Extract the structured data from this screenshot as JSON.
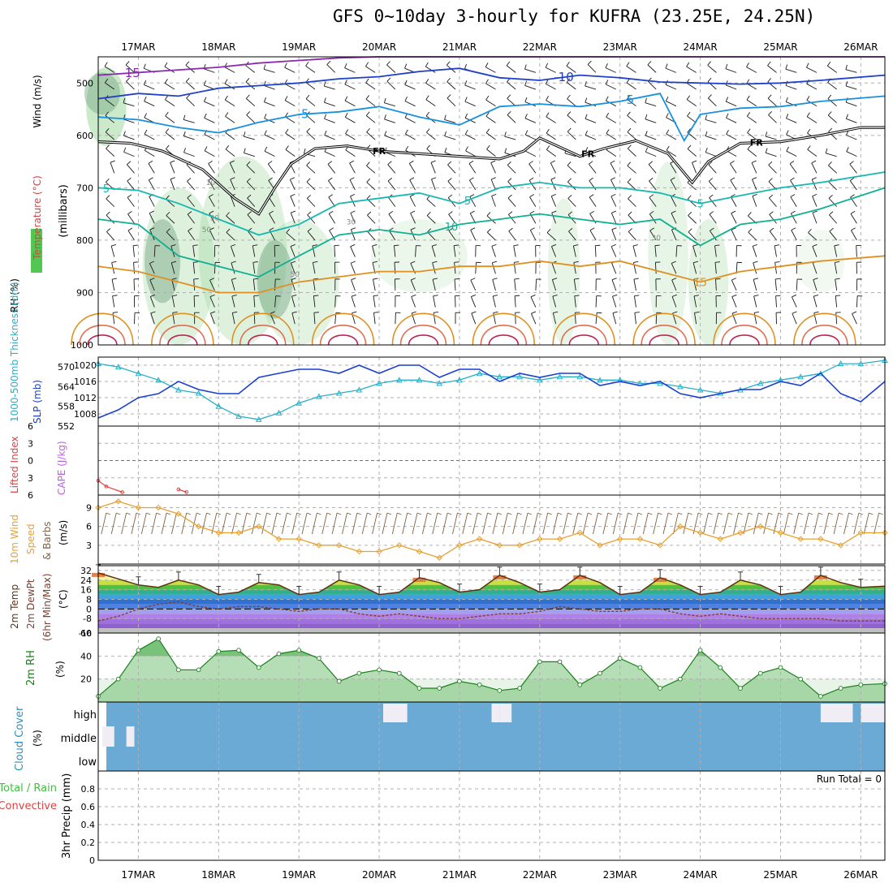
{
  "title": "GFS 0~10day 3-hourly for KUFRA (23.25E, 24.25N)",
  "x_axis": {
    "date_labels": [
      "17MAR",
      "18MAR",
      "19MAR",
      "20MAR",
      "21MAR",
      "22MAR",
      "23MAR",
      "24MAR",
      "25MAR",
      "26MAR"
    ]
  },
  "colors": {
    "temperature_label": "#e04040",
    "wind_label": "#000000",
    "rh_label_bg": "#40c040",
    "slp_line": "#1a3fd0",
    "thickness_line": "#28b0c8",
    "lifted_index": "#e04040",
    "cape": "#c060e0",
    "wind10m_speed": "#e8a030",
    "wind10m_barbs": "#806040",
    "temp2m_line": "#603010",
    "dewpt_line": "#804030",
    "rh2m_fill": "#2ea02e",
    "rh2m_line": "#1a801a",
    "cloud_fill": "#6aaad4",
    "cloud_clear": "#f0eef4",
    "precip_total": "#40c040",
    "precip_convective": "#e04040"
  },
  "panel_labels": {
    "upper": {
      "temperature": "Temperature (°C)",
      "wind": "Wind (m/s)",
      "rh": "RH (%)",
      "pressure_unit": "(millibars)"
    },
    "slp_thickness": {
      "thickness": "1000-500mb Thickness (dm)",
      "slp": "SLP (mb)"
    },
    "stability": {
      "lifted_index": "Lifted Index",
      "cape": "CAPE (J/kg)"
    },
    "wind10m": {
      "line1": "10m Wind",
      "line2": "Speed",
      "line3": "& Barbs",
      "unit": "(m/s)"
    },
    "temp2m": {
      "line1": "2m Temp",
      "line2": "2m DewPt",
      "line3": "(6hr Min/Max)",
      "unit": "(°C)"
    },
    "rh2m": {
      "label": "2m RH",
      "unit": "(%)"
    },
    "cloud": {
      "label": "Cloud Cover",
      "unit": "(%)"
    },
    "precip": {
      "total": "Total / Rain",
      "convective": "Convective",
      "label": "3hr Precip (mm)",
      "run_total": "Run Total = 0"
    }
  },
  "chart_data": [
    {
      "type": "line",
      "panel": "upper-air cross-section",
      "y_ticks": [
        "500",
        "600",
        "700",
        "800",
        "900",
        "1000"
      ],
      "y_range_mb": [
        450,
        1000
      ],
      "days": [
        16.5,
        26.3
      ],
      "contour_labels": [
        "-15",
        "-10",
        "-5",
        "FR",
        "5",
        "10",
        "15"
      ],
      "rh_labels": [
        "10",
        "30",
        "50",
        "70"
      ],
      "isotherms": [
        {
          "label": "-15",
          "color": "#8a2ab0",
          "days": [
            16.5,
            17.5,
            18.0,
            18.5,
            19.0,
            19.5,
            20.0,
            21.0,
            22.0,
            23.0,
            24.0,
            25.0,
            26.3
          ],
          "mb": [
            485,
            475,
            470,
            462,
            457,
            452,
            450,
            450,
            450,
            450,
            450,
            450,
            450
          ]
        },
        {
          "label": "-10",
          "color": "#2040c8",
          "days": [
            16.5,
            17.0,
            17.5,
            18.0,
            18.5,
            19.0,
            19.5,
            20.0,
            20.5,
            21.0,
            21.5,
            22.0,
            22.5,
            23.0,
            23.5,
            24.0,
            24.5,
            25.0,
            25.5,
            26.3
          ],
          "mb": [
            530,
            520,
            525,
            510,
            505,
            500,
            492,
            488,
            478,
            472,
            490,
            495,
            485,
            490,
            498,
            500,
            502,
            500,
            495,
            485
          ]
        },
        {
          "label": "-5",
          "color": "#1890e0",
          "days": [
            16.5,
            17.0,
            17.5,
            18.0,
            18.5,
            19.0,
            19.5,
            20.0,
            20.5,
            21.0,
            21.5,
            22.0,
            22.5,
            23.0,
            23.5,
            23.8,
            24.0,
            24.5,
            25.0,
            25.5,
            26.3
          ],
          "mb": [
            565,
            570,
            585,
            595,
            575,
            560,
            555,
            545,
            565,
            580,
            545,
            540,
            545,
            535,
            520,
            610,
            560,
            548,
            545,
            535,
            525
          ]
        },
        {
          "label": "FR",
          "color": "#000000",
          "days": [
            16.5,
            16.9,
            17.3,
            17.8,
            18.2,
            18.5,
            18.7,
            18.9,
            19.2,
            19.6,
            20.0,
            20.5,
            21.0,
            21.5,
            21.8,
            22.0,
            22.5,
            22.8,
            23.2,
            23.6,
            23.9,
            24.1,
            24.5,
            25.0,
            25.5,
            26.0,
            26.3
          ],
          "mb": [
            612,
            615,
            630,
            665,
            720,
            750,
            700,
            655,
            625,
            620,
            630,
            635,
            640,
            645,
            630,
            605,
            640,
            625,
            610,
            635,
            690,
            650,
            615,
            612,
            600,
            585,
            585
          ]
        },
        {
          "label": "5",
          "color": "#18b8b0",
          "days": [
            16.5,
            17.0,
            17.5,
            18.0,
            18.5,
            19.0,
            19.5,
            20.0,
            20.5,
            21.0,
            21.5,
            22.0,
            22.5,
            23.0,
            23.5,
            24.0,
            24.5,
            25.0,
            25.5,
            26.3
          ],
          "mb": [
            700,
            705,
            730,
            760,
            790,
            770,
            730,
            720,
            710,
            730,
            700,
            690,
            700,
            700,
            710,
            730,
            715,
            700,
            690,
            670
          ]
        },
        {
          "label": "10",
          "color": "#10b090",
          "days": [
            16.5,
            17.0,
            17.5,
            18.0,
            18.5,
            19.0,
            19.5,
            20.0,
            20.5,
            21.0,
            21.5,
            22.0,
            22.5,
            23.0,
            23.5,
            24.0,
            24.5,
            25.0,
            25.5,
            26.3
          ],
          "mb": [
            760,
            770,
            830,
            850,
            870,
            830,
            790,
            780,
            790,
            770,
            760,
            750,
            760,
            770,
            760,
            810,
            770,
            760,
            740,
            700
          ]
        },
        {
          "label": "15",
          "color": "#e09020",
          "days": [
            16.5,
            17.0,
            17.5,
            18.0,
            18.5,
            19.0,
            19.5,
            20.0,
            20.5,
            21.0,
            21.5,
            22.0,
            22.5,
            23.0,
            23.5,
            24.0,
            24.5,
            25.0,
            25.5,
            26.3
          ],
          "mb": [
            850,
            860,
            880,
            900,
            900,
            880,
            870,
            860,
            860,
            850,
            850,
            840,
            850,
            840,
            860,
            880,
            860,
            850,
            840,
            830
          ]
        }
      ]
    },
    {
      "type": "line",
      "panel": "SLP and thickness",
      "slp_ticks": [
        "1008",
        "1012",
        "1016",
        "1020"
      ],
      "slp_range": [
        1005,
        1022
      ],
      "thickness_ticks": [
        "552",
        "558",
        "564",
        "570"
      ],
      "thickness_range": [
        552,
        573
      ],
      "days": [
        16.5,
        16.75,
        17.0,
        17.25,
        17.5,
        17.75,
        18.0,
        18.25,
        18.5,
        18.75,
        19.0,
        19.25,
        19.5,
        19.75,
        20.0,
        20.25,
        20.5,
        20.75,
        21.0,
        21.25,
        21.5,
        21.75,
        22.0,
        22.25,
        22.5,
        22.75,
        23.0,
        23.25,
        23.5,
        23.75,
        24.0,
        24.25,
        24.5,
        24.75,
        25.0,
        25.25,
        25.5,
        25.75,
        26.0,
        26.3
      ],
      "series": [
        {
          "name": "SLP (mb)",
          "values": [
            1007,
            1009,
            1012,
            1013,
            1016,
            1014,
            1013,
            1013,
            1017,
            1018,
            1019,
            1019,
            1018,
            1020,
            1018,
            1020,
            1020,
            1017,
            1019,
            1019,
            1016,
            1018,
            1017,
            1018,
            1018,
            1015,
            1016,
            1015,
            1016,
            1013,
            1012,
            1013,
            1014,
            1014,
            1016,
            1015,
            1018,
            1013,
            1011,
            1016
          ]
        },
        {
          "name": "1000-500mb Thickness (dm)",
          "values": [
            571,
            570,
            568,
            566,
            563,
            562,
            558,
            555,
            554,
            556,
            559,
            561,
            562,
            563,
            565,
            566,
            566,
            565,
            566,
            568,
            567,
            567,
            566,
            567,
            567,
            566,
            566,
            565,
            565,
            564,
            563,
            562,
            563,
            565,
            566,
            567,
            568,
            571,
            571,
            572
          ]
        }
      ]
    },
    {
      "type": "line",
      "panel": "Lifted index and CAPE",
      "y_ticks": [
        "-6",
        "-3",
        "0",
        "3",
        "6"
      ],
      "y_range": [
        -6,
        6
      ],
      "series": [
        {
          "name": "Lifted Index",
          "days": [
            16.5,
            16.6,
            16.8
          ],
          "values": [
            3.5,
            4.5,
            5.5
          ]
        },
        {
          "name": "Lifted Index",
          "days": [
            17.5,
            17.6
          ],
          "values": [
            5.0,
            5.5
          ]
        }
      ]
    },
    {
      "type": "line",
      "panel": "10m wind",
      "y_ticks": [
        "3",
        "6",
        "9"
      ],
      "y_range": [
        0,
        11
      ],
      "days": [
        16.5,
        16.75,
        17.0,
        17.25,
        17.5,
        17.75,
        18.0,
        18.25,
        18.5,
        18.75,
        19.0,
        19.25,
        19.5,
        19.75,
        20.0,
        20.25,
        20.5,
        20.75,
        21.0,
        21.25,
        21.5,
        21.75,
        22.0,
        22.25,
        22.5,
        22.75,
        23.0,
        23.25,
        23.5,
        23.75,
        24.0,
        24.25,
        24.5,
        24.75,
        25.0,
        25.25,
        25.5,
        25.75,
        26.0,
        26.3
      ],
      "series": [
        {
          "name": "Speed",
          "values": [
            9,
            10,
            9,
            9,
            8,
            6,
            5,
            5,
            6,
            4,
            4,
            3,
            3,
            2,
            2,
            3,
            2,
            1,
            3,
            4,
            3,
            3,
            4,
            4,
            5,
            3,
            4,
            4,
            3,
            6,
            5,
            4,
            5,
            6,
            5,
            4,
            4,
            3,
            5,
            5
          ]
        }
      ]
    },
    {
      "type": "line",
      "panel": "2m temperature and dewpoint",
      "y_ticks": [
        "32",
        "24",
        "16",
        "8",
        "0",
        "-8",
        "-16"
      ],
      "y_range": [
        -20,
        36
      ],
      "days": [
        16.5,
        16.75,
        17.0,
        17.25,
        17.5,
        17.75,
        18.0,
        18.25,
        18.5,
        18.75,
        19.0,
        19.25,
        19.5,
        19.75,
        20.0,
        20.25,
        20.5,
        20.75,
        21.0,
        21.25,
        21.5,
        21.75,
        22.0,
        22.25,
        22.5,
        22.75,
        23.0,
        23.25,
        23.5,
        23.75,
        24.0,
        24.25,
        24.5,
        24.75,
        25.0,
        25.25,
        25.5,
        25.75,
        26.0,
        26.3
      ],
      "series": [
        {
          "name": "2m Temp",
          "values": [
            30,
            25,
            20,
            18,
            24,
            20,
            12,
            14,
            22,
            20,
            12,
            14,
            24,
            20,
            12,
            14,
            26,
            22,
            14,
            16,
            28,
            22,
            14,
            16,
            28,
            22,
            12,
            14,
            26,
            20,
            12,
            14,
            24,
            20,
            12,
            14,
            28,
            22,
            18,
            19
          ]
        },
        {
          "name": "2m DewPt",
          "values": [
            -10,
            -6,
            0,
            4,
            6,
            2,
            0,
            2,
            2,
            0,
            -2,
            0,
            0,
            -4,
            -6,
            -4,
            -6,
            -8,
            -8,
            -6,
            -4,
            -4,
            -2,
            2,
            0,
            -2,
            -2,
            0,
            0,
            -4,
            -6,
            -4,
            -6,
            -8,
            -8,
            -8,
            -8,
            -10,
            -10,
            -10
          ]
        }
      ]
    },
    {
      "type": "area",
      "panel": "2m RH",
      "y_ticks": [
        "20",
        "40",
        "60"
      ],
      "y_range": [
        0,
        60
      ],
      "days": [
        16.5,
        16.75,
        17.0,
        17.25,
        17.5,
        17.75,
        18.0,
        18.25,
        18.5,
        18.75,
        19.0,
        19.25,
        19.5,
        19.75,
        20.0,
        20.25,
        20.5,
        20.75,
        21.0,
        21.25,
        21.5,
        21.75,
        22.0,
        22.25,
        22.5,
        22.75,
        23.0,
        23.25,
        23.5,
        23.75,
        24.0,
        24.25,
        24.5,
        24.75,
        25.0,
        25.25,
        25.5,
        25.75,
        26.0,
        26.3
      ],
      "series": [
        {
          "name": "2m RH",
          "values": [
            5,
            20,
            45,
            55,
            28,
            28,
            44,
            45,
            30,
            42,
            45,
            38,
            18,
            25,
            28,
            25,
            12,
            12,
            18,
            15,
            10,
            12,
            35,
            35,
            15,
            25,
            38,
            30,
            12,
            20,
            45,
            30,
            12,
            25,
            30,
            20,
            5,
            12,
            15,
            16
          ]
        }
      ]
    },
    {
      "type": "heatmap",
      "panel": "Cloud Cover",
      "y_ticks": [
        "high",
        "middle",
        "low"
      ],
      "clear_blocks": [
        {
          "days": [
            16.55,
            16.7
          ],
          "level": "middle"
        },
        {
          "days": [
            16.85,
            16.95
          ],
          "level": "middle"
        },
        {
          "days": [
            20.05,
            20.35
          ],
          "level": "high"
        },
        {
          "days": [
            21.4,
            21.5
          ],
          "level": "high"
        },
        {
          "days": [
            21.5,
            21.65
          ],
          "level": "high"
        },
        {
          "days": [
            25.5,
            25.9
          ],
          "level": "high"
        },
        {
          "days": [
            26.0,
            26.3
          ],
          "level": "high"
        }
      ]
    },
    {
      "type": "bar",
      "panel": "3hr Precip",
      "y_ticks": [
        "0",
        "0.2",
        "0.4",
        "0.6",
        "0.8"
      ],
      "y_range": [
        0,
        1
      ],
      "series": [
        {
          "name": "Total / Rain",
          "values": []
        }
      ]
    }
  ]
}
